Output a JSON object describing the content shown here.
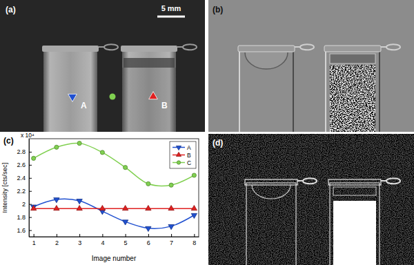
{
  "chart_data": {
    "type": "line",
    "title": "(c)",
    "annotations": [
      "x 10⁴"
    ],
    "x_label": "Image number",
    "y_label": "Intensity [cts/sec]",
    "x": [
      1,
      2,
      3,
      4,
      5,
      6,
      7,
      8
    ],
    "series": [
      {
        "name": "A",
        "color": "#2050d0",
        "marker": "triangle-down",
        "line_style": "solid",
        "values": [
          1.96,
          2.07,
          2.05,
          1.89,
          1.73,
          1.63,
          1.66,
          1.83
        ]
      },
      {
        "name": "B",
        "color": "#e02020",
        "marker": "triangle-up",
        "line_style": "solid",
        "values": [
          1.93,
          1.93,
          1.93,
          1.93,
          1.93,
          1.93,
          1.93,
          1.93
        ]
      },
      {
        "name": "C",
        "color": "#80d050",
        "marker": "circle",
        "line_style": "solid",
        "values": [
          2.7,
          2.87,
          2.93,
          2.79,
          2.56,
          2.31,
          2.29,
          2.44
        ]
      }
    ],
    "xlim": [
      0.8,
      8.2
    ],
    "xticks": [
      1,
      2,
      3,
      4,
      5,
      6,
      7,
      8
    ],
    "ylim": [
      1.5,
      3
    ],
    "yticks": [
      1.6,
      1.8,
      2,
      2.2,
      2.4,
      2.6,
      2.8
    ],
    "grid": false,
    "legend": "upper right"
  },
  "panels": [
    {
      "label": "(a)",
      "scale_bar": "5 mm",
      "markers": [
        "A",
        "B"
      ]
    },
    {
      "label": "(b)"
    },
    {
      "label": "(d)"
    }
  ]
}
